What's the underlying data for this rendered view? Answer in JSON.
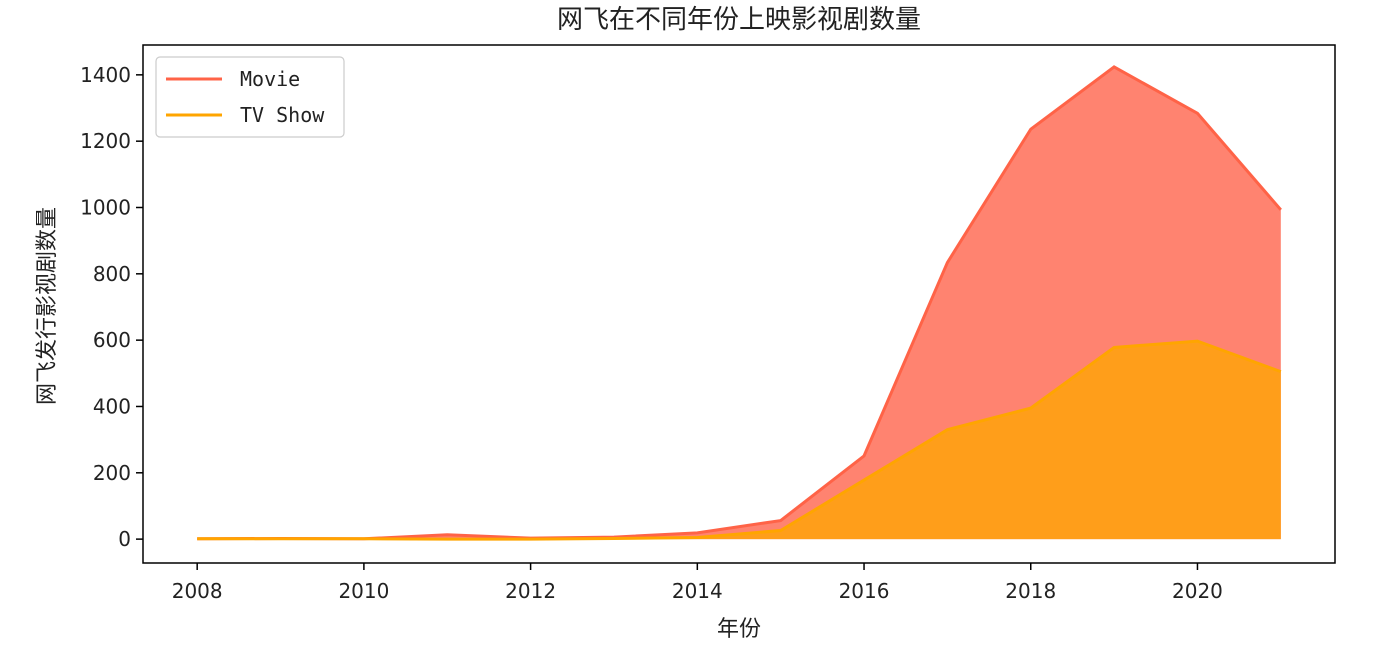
{
  "chart_data": {
    "type": "area",
    "title": "网飞在不同年份上映影视剧数量",
    "xlabel": "年份",
    "ylabel": "网飞发行影视剧数量",
    "x": [
      2008,
      2009,
      2010,
      2011,
      2012,
      2013,
      2014,
      2015,
      2016,
      2017,
      2018,
      2019,
      2020,
      2021
    ],
    "series": [
      {
        "name": "Movie",
        "color": "#FF6347",
        "fill": "#FF8370",
        "values": [
          1,
          2,
          1,
          13,
          3,
          6,
          19,
          56,
          251,
          834,
          1236,
          1424,
          1284,
          993
        ]
      },
      {
        "name": "TV Show",
        "color": "#FFA500",
        "fill": "#FF9E1A",
        "values": [
          1,
          1,
          1,
          0,
          0,
          2,
          5,
          26,
          178,
          330,
          395,
          578,
          597,
          505
        ]
      }
    ],
    "x_ticks": [
      2008,
      2010,
      2012,
      2014,
      2016,
      2018,
      2020
    ],
    "y_ticks": [
      0,
      200,
      400,
      600,
      800,
      1000,
      1200,
      1400
    ],
    "xlim": [
      2007.35,
      2021.65
    ],
    "ylim": [
      -72,
      1490
    ],
    "grid": false,
    "legend_position": "top-left"
  }
}
